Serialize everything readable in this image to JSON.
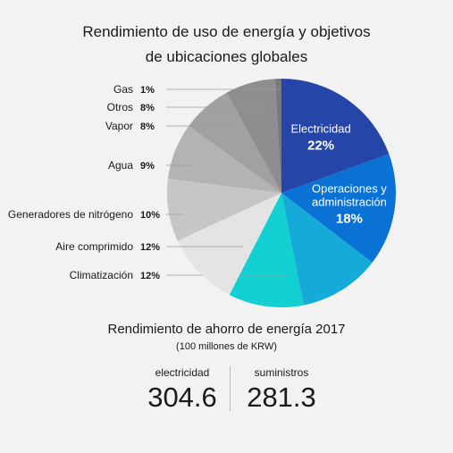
{
  "title_line1": "Rendimiento de uso de energía y objetivos",
  "title_line2": "de ubicaciones globales",
  "chart_data": {
    "type": "pie",
    "title": "Rendimiento de uso de energía y objetivos de ubicaciones globales",
    "slices": [
      {
        "label": "Electricidad",
        "value": 22,
        "display": "22%",
        "color": "#2545a8",
        "placement": "inside"
      },
      {
        "label_lines": [
          "Operaciones y",
          "administración"
        ],
        "value": 18,
        "display": "18%",
        "color": "#0a72d4",
        "placement": "inside"
      },
      {
        "label": "",
        "value": 13,
        "display": "",
        "color": "#14abd8",
        "placement": "none"
      },
      {
        "label": "Climatización",
        "value": 12,
        "display": "12%",
        "color": "#12cfd1",
        "placement": "outside"
      },
      {
        "label": "Aire comprimido",
        "value": 12,
        "display": "12%",
        "color": "#e4e4e5",
        "placement": "outside"
      },
      {
        "label": "Generadores de nitrógeno",
        "value": 10,
        "display": "10%",
        "color": "#c6c6c8",
        "placement": "outside"
      },
      {
        "label": "Agua",
        "value": 9,
        "display": "9%",
        "color": "#b3b3b5",
        "placement": "outside"
      },
      {
        "label": "Vapor",
        "value": 8,
        "display": "8%",
        "color": "#a1a1a3",
        "placement": "outside"
      },
      {
        "label": "Otros",
        "value": 8,
        "display": "8%",
        "color": "#8e8e90",
        "placement": "outside"
      },
      {
        "label": "Gas",
        "value": 1,
        "display": "1%",
        "color": "#79797b",
        "placement": "outside"
      }
    ]
  },
  "savings": {
    "title": "Rendimiento de ahorro de energía 2017",
    "subtitle": "(100 millones de KRW)",
    "metrics": [
      {
        "label": "electricidad",
        "value": "304.6"
      },
      {
        "label": "suministros",
        "value": "281.3"
      }
    ]
  }
}
